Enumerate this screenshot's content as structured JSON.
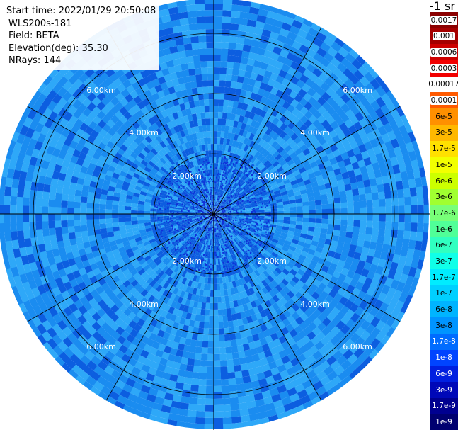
{
  "header": {
    "start_time": "Start time: 2022/01/29 20:50:08",
    "instrument": "WLS200s-181",
    "field": "Field: BETA",
    "elevation": "Elevation(deg): 35.30",
    "nrays": "NRays: 144"
  },
  "units": "-1 sr",
  "range_labels": [
    "2.00km",
    "4.00km",
    "6.00km"
  ],
  "colorbar": {
    "labels": [
      "0.0017",
      "0.001",
      "0.0006",
      "0.0003",
      "0.00017",
      "0.0001",
      "6e-5",
      "3e-5",
      "1.7e-5",
      "1e-5",
      "6e-6",
      "3e-6",
      "1.7e-6",
      "1e-6",
      "6e-7",
      "3e-7",
      "1.7e-7",
      "1e-7",
      "6e-8",
      "3e-8",
      "1.7e-8",
      "1e-8",
      "6e-9",
      "3e-9",
      "1.7e-9",
      "1e-9"
    ],
    "colors": [
      "#8b0000",
      "#a50000",
      "#cc0000",
      "#f20000",
      "#ffffff",
      "#ff5a00",
      "#ff9000",
      "#ffb800",
      "#ffe000",
      "#f2ff00",
      "#ccff00",
      "#a0ff30",
      "#78ff78",
      "#50ff98",
      "#30ffc0",
      "#10ffe8",
      "#00ecff",
      "#00d0ff",
      "#00b4ff",
      "#0094ff",
      "#006cff",
      "#0044ff",
      "#0020e0",
      "#0008b8",
      "#000090",
      "#000070"
    ],
    "label_backgrounds": [
      "#ffffff",
      "#ffffff",
      "#ffffff",
      "#ffffff",
      "#ffffff",
      "#ffffff",
      "#ff9000",
      "#ffb800",
      "#ffe000",
      "#f2ff00",
      "#ccff00",
      "#a0ff30",
      "#78ff78",
      "#50ff98",
      "#30ffc0",
      "#10ffe8",
      "#00ecff",
      "#00d0ff",
      "#00b4ff",
      "#0094ff",
      "#006cff",
      "#0044ff",
      "#0020e0",
      "#0008b8",
      "#000090",
      "#000070"
    ],
    "label_colors": [
      "#000000",
      "#000000",
      "#000000",
      "#000000",
      "#000000",
      "#000000",
      "#000000",
      "#000000",
      "#000000",
      "#000000",
      "#000000",
      "#000000",
      "#000000",
      "#000000",
      "#000000",
      "#000000",
      "#000000",
      "#000000",
      "#000000",
      "#000000",
      "#ffffff",
      "#ffffff",
      "#ffffff",
      "#ffffff",
      "#ffffff",
      "#ffffff"
    ]
  },
  "colors": {
    "field_base": "#1a8cf0",
    "field_light": "#2ea8f8",
    "field_dark": "#0c5ee0",
    "center_speckle": "#1030d8",
    "grid_line": "#000000",
    "range_label": "#ffffff"
  }
}
